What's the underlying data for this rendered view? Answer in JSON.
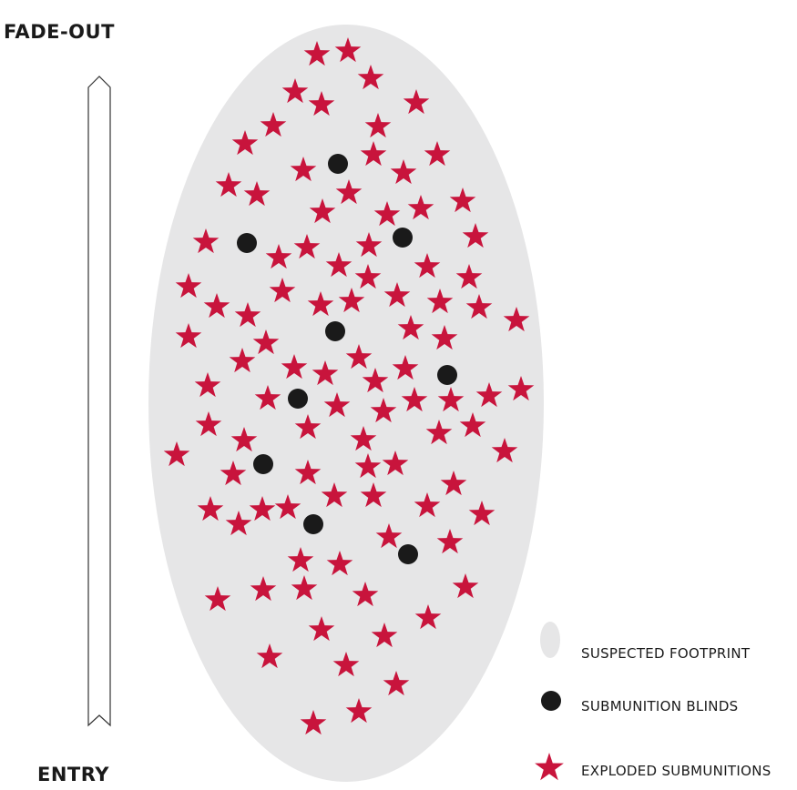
{
  "labels": {
    "top": "FADE-OUT",
    "bottom": "ENTRY"
  },
  "legend": {
    "footprint": "SUSPECTED FOOTPRINT",
    "blinds": "SUBMUNITION BLINDS",
    "exploded": "EXPLODED SUBMUNITIONS"
  },
  "colors": {
    "footprint": "#e6e6e7",
    "star": "#c8143c",
    "dot": "#1a1a1a",
    "arrow_stroke": "#333333"
  },
  "icons": {
    "star": "star-icon",
    "dot": "dot-icon",
    "footprint": "ellipse-icon"
  }
}
